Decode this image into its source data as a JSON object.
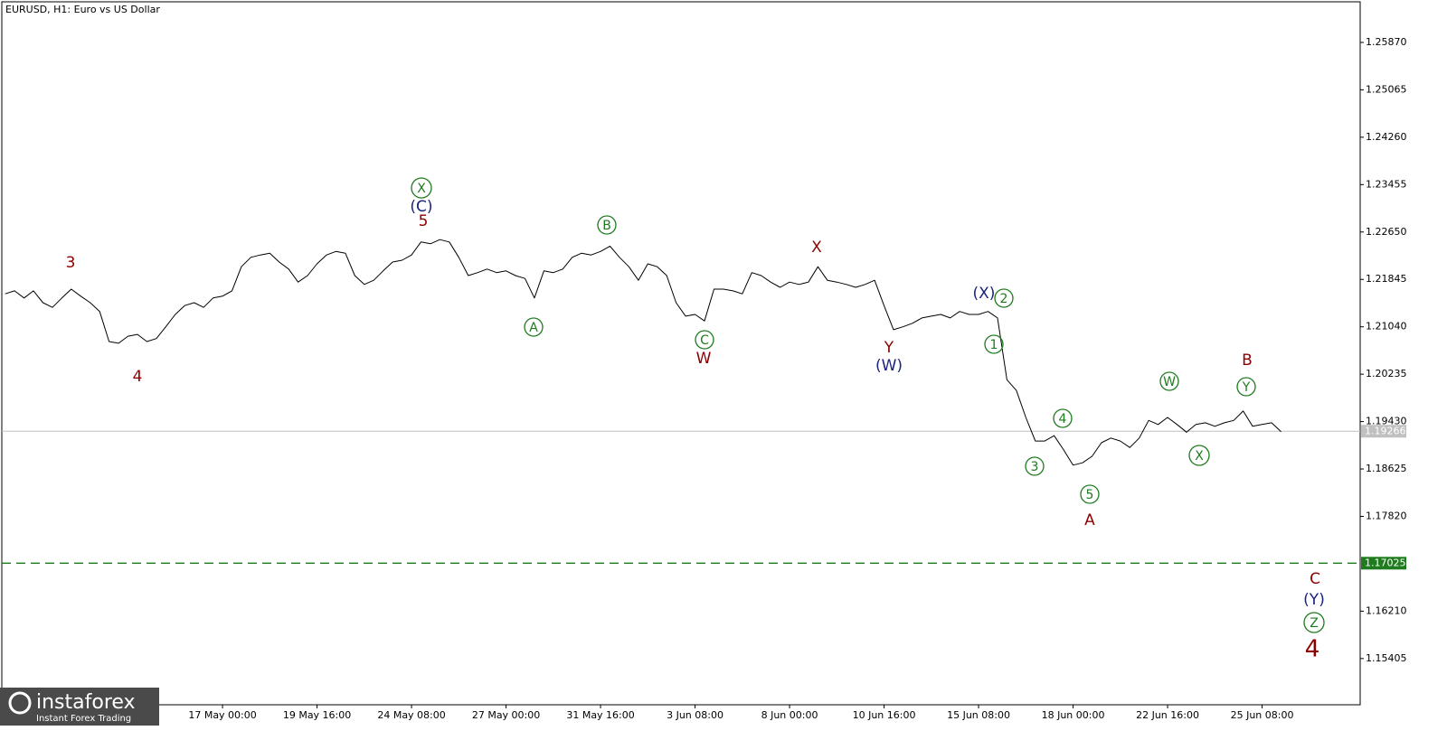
{
  "chart_data": {
    "type": "line",
    "title": "EURUSD, H1:  Euro vs US Dollar",
    "categories": [
      null,
      null,
      null,
      null,
      null,
      null,
      null,
      null,
      null,
      null,
      null,
      null,
      null,
      null,
      null,
      null,
      null,
      null,
      null,
      null,
      null,
      null,
      null,
      "17 May 00:00",
      null,
      null,
      null,
      null,
      null,
      null,
      null,
      null,
      null,
      "19 May 16:00",
      null,
      null,
      null,
      null,
      null,
      null,
      null,
      null,
      null,
      "24 May 08:00",
      null,
      null,
      null,
      null,
      null,
      null,
      null,
      null,
      null,
      "27 May 00:00",
      null,
      null,
      null,
      null,
      null,
      null,
      null,
      null,
      null,
      "31 May 16:00",
      null,
      null,
      null,
      null,
      null,
      null,
      null,
      null,
      null,
      "3 Jun 08:00",
      null,
      null,
      null,
      null,
      null,
      null,
      null,
      null,
      null,
      "8 Jun 00:00",
      null,
      null,
      null,
      null,
      null,
      null,
      null,
      null,
      null,
      "10 Jun 16:00",
      null,
      null,
      null,
      null,
      null,
      null,
      null,
      null,
      null,
      "15 Jun 08:00",
      null,
      null,
      null,
      null,
      null,
      null,
      null,
      null,
      null,
      "18 Jun 00:00",
      null,
      null,
      null,
      null,
      null,
      null,
      null,
      null,
      null,
      "22 Jun 16:00",
      null,
      null,
      null,
      null,
      null,
      null,
      null,
      null,
      null,
      "25 Jun 08:00",
      null,
      null,
      null,
      null,
      null,
      null
    ],
    "series": [
      {
        "color": "#000000",
        "values": [
          1.216,
          1.2165,
          1.2153,
          1.2165,
          1.2145,
          1.2137,
          1.2153,
          1.2168,
          1.2156,
          1.2145,
          1.213,
          1.2079,
          1.2076,
          1.2088,
          1.2091,
          1.2079,
          1.2084,
          1.2104,
          1.2125,
          1.214,
          1.2145,
          1.2137,
          1.2153,
          1.2156,
          1.2165,
          1.2206,
          1.2222,
          1.2226,
          1.2229,
          1.2214,
          1.2202,
          1.218,
          1.2191,
          1.2211,
          1.2226,
          1.2232,
          1.2229,
          1.2191,
          1.2176,
          1.2183,
          1.2199,
          1.2214,
          1.2217,
          1.2226,
          1.2248,
          1.2245,
          1.2252,
          1.2248,
          1.2222,
          1.2191,
          1.2196,
          1.2202,
          1.2196,
          1.2199,
          1.2191,
          1.2186,
          1.2153,
          1.2199,
          1.2196,
          1.2202,
          1.2222,
          1.2229,
          1.2226,
          1.2232,
          1.2241,
          1.2222,
          1.2206,
          1.2183,
          1.2211,
          1.2206,
          1.2191,
          1.2145,
          1.2122,
          1.2125,
          1.2114,
          1.2168,
          1.2168,
          1.2165,
          1.216,
          1.2196,
          1.2191,
          1.218,
          1.2171,
          1.218,
          1.2176,
          1.218,
          1.2206,
          1.2183,
          1.218,
          1.2176,
          1.2171,
          1.2176,
          1.2183,
          1.214,
          1.2099,
          1.2104,
          1.211,
          1.2119,
          1.2122,
          1.2125,
          1.2119,
          1.213,
          1.2125,
          1.2125,
          1.213,
          1.2119,
          1.2014,
          1.1996,
          1.195,
          1.191,
          1.191,
          1.1919,
          1.1895,
          1.1869,
          1.1873,
          1.1884,
          1.1907,
          1.1915,
          1.191,
          1.1899,
          1.1915,
          1.1945,
          1.1938,
          1.195,
          1.1938,
          1.1925,
          1.1938,
          1.1941,
          1.1935,
          1.1941,
          1.1945,
          1.1961,
          1.1935,
          1.1938,
          1.1941,
          1.1926,
          null,
          null,
          null,
          null
        ]
      },
      {
        "color": "#a8a8a8",
        "values": [
          null,
          null,
          null,
          null,
          null,
          null,
          null,
          null,
          null,
          null,
          null,
          null,
          null,
          null,
          null,
          null,
          null,
          null,
          null,
          null,
          null,
          null,
          null,
          null,
          null,
          null,
          null,
          null,
          null,
          null,
          null,
          null,
          null,
          null,
          null,
          null,
          null,
          null,
          null,
          null,
          null,
          null,
          null,
          null,
          null,
          null,
          null,
          null,
          null,
          null,
          null,
          null,
          null,
          null,
          null,
          null,
          null,
          null,
          null,
          null,
          null,
          null,
          null,
          null,
          null,
          null,
          null,
          null,
          null,
          null,
          null,
          null,
          null,
          null,
          null,
          null,
          null,
          null,
          null,
          null,
          null,
          null,
          null,
          null,
          null,
          null,
          null,
          null,
          null,
          null,
          null,
          null,
          null,
          null,
          null,
          null,
          null,
          null,
          null,
          null,
          null,
          null,
          null,
          null,
          null,
          null,
          null,
          null,
          null,
          null,
          null,
          null,
          null,
          null,
          null,
          null,
          null,
          null,
          null,
          null,
          null,
          null,
          null,
          null,
          null,
          null,
          null,
          null,
          null,
          null,
          null,
          null,
          null,
          null,
          null,
          1.1926,
          null,
          null,
          null,
          1.1702
        ]
      }
    ],
    "ylim": [
      1.1462,
      1.2656
    ],
    "yticks": [
      1.15405,
      {
        "value": 1.1621,
        "label": "1.16210"
      },
      {
        "value": 1.1782,
        "label": "1.17820"
      },
      1.18625,
      {
        "value": 1.1943,
        "label": "1.19430"
      },
      1.20235,
      {
        "value": 1.2104,
        "label": "1.21040"
      },
      1.21845,
      {
        "value": 1.2265,
        "label": "1.22650"
      },
      1.23455,
      {
        "value": 1.2426,
        "label": "1.24260"
      },
      1.25065,
      {
        "value": 1.2587,
        "label": "1.25870"
      }
    ],
    "grid": false,
    "hlines": [
      {
        "value": 1.19266,
        "color": "#c0c0c0",
        "dashed": false
      },
      {
        "value": 1.17025,
        "color": "#1e7b1e",
        "dashed": true
      }
    ],
    "annotations": [
      {
        "text": "3",
        "color": "#8b0000",
        "circled": false
      },
      {
        "text": "4",
        "color": "#8b0000",
        "circled": false
      },
      {
        "text": "X",
        "color": "#1e7b1e",
        "circled": true
      },
      {
        "text": "(C)",
        "color": "#1a237e",
        "circled": false
      },
      {
        "text": "5",
        "color": "#8b0000",
        "circled": false
      },
      {
        "text": "A",
        "color": "#1e7b1e",
        "circled": true
      },
      {
        "text": "B",
        "color": "#1e7b1e",
        "circled": true
      },
      {
        "text": "C",
        "color": "#1e7b1e",
        "circled": true
      },
      {
        "text": "W",
        "color": "#8b0000",
        "circled": false
      },
      {
        "text": "X",
        "color": "#8b0000",
        "circled": false
      },
      {
        "text": "Y",
        "color": "#8b0000",
        "circled": false
      },
      {
        "text": "(W)",
        "color": "#1a237e",
        "circled": false
      },
      {
        "text": "(X)",
        "color": "#1a237e",
        "circled": false
      },
      {
        "text": "2",
        "color": "#1e7b1e",
        "circled": true
      },
      {
        "text": "1",
        "color": "#1e7b1e",
        "circled": true
      },
      {
        "text": "3",
        "color": "#1e7b1e",
        "circled": true
      },
      {
        "text": "4",
        "color": "#1e7b1e",
        "circled": true
      },
      {
        "text": "5",
        "color": "#1e7b1e",
        "circled": true
      },
      {
        "text": "A",
        "color": "#8b0000",
        "circled": false
      },
      {
        "text": "W",
        "color": "#1e7b1e",
        "circled": true
      },
      {
        "text": "X",
        "color": "#1e7b1e",
        "circled": true
      },
      {
        "text": "B",
        "color": "#8b0000",
        "circled": false
      },
      {
        "text": "Y",
        "color": "#1e7b1e",
        "circled": true
      },
      {
        "text": "C",
        "color": "#8b0000",
        "circled": false
      },
      {
        "text": "(Y)",
        "color": "#1a237e",
        "circled": false
      },
      {
        "text": "Z",
        "color": "#1e7b1e",
        "circled": true
      },
      {
        "text": "4",
        "color": "#8b0000",
        "circled": false
      }
    ]
  },
  "logo": {
    "name": "instaforex",
    "tagline": "Instant Forex Trading"
  }
}
